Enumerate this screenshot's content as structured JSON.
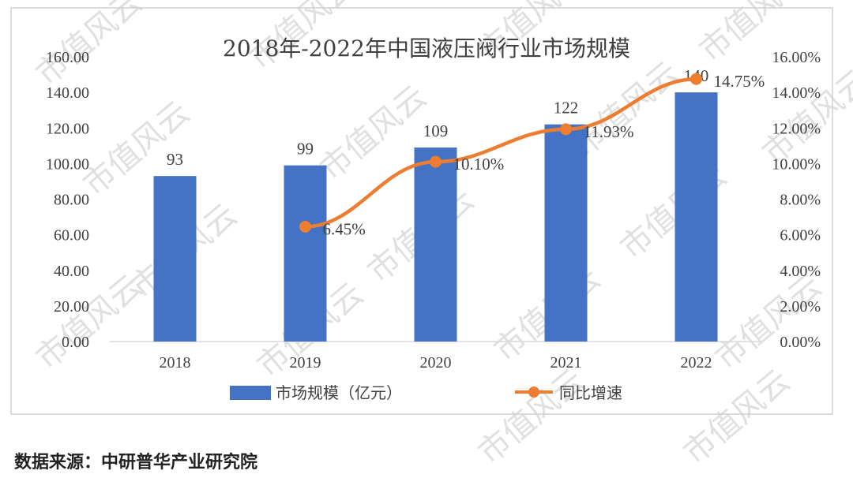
{
  "chart_data": {
    "type": "bar",
    "title": "2018年-2022年中国液压阀行业市场规模",
    "categories": [
      "2018",
      "2019",
      "2020",
      "2021",
      "2022"
    ],
    "series": [
      {
        "name": "市场规模（亿元）",
        "type": "bar",
        "axis": "left",
        "values": [
          93,
          99,
          109,
          122,
          140
        ],
        "labels": [
          "93",
          "99",
          "109",
          "122",
          "140"
        ],
        "color": "#4472C4"
      },
      {
        "name": "同比增速",
        "type": "line",
        "axis": "right",
        "values": [
          null,
          6.45,
          10.1,
          11.93,
          14.75
        ],
        "labels": [
          "",
          "6.45%",
          "10.10%",
          "11.93%",
          "14.75%"
        ],
        "color": "#ED7D31"
      }
    ],
    "y_left": {
      "ticks": [
        "0.00",
        "20.00",
        "40.00",
        "60.00",
        "80.00",
        "100.00",
        "120.00",
        "140.00",
        "160.00"
      ],
      "ylim": [
        0,
        160
      ]
    },
    "y_right": {
      "ticks": [
        "0.00%",
        "2.00%",
        "4.00%",
        "6.00%",
        "8.00%",
        "10.00%",
        "12.00%",
        "14.00%",
        "16.00%"
      ],
      "ylim": [
        0,
        16
      ]
    },
    "grid": false,
    "legend_position": "bottom"
  },
  "source_note": "数据来源：中研普华产业研究院",
  "watermark_text": "市值风云"
}
